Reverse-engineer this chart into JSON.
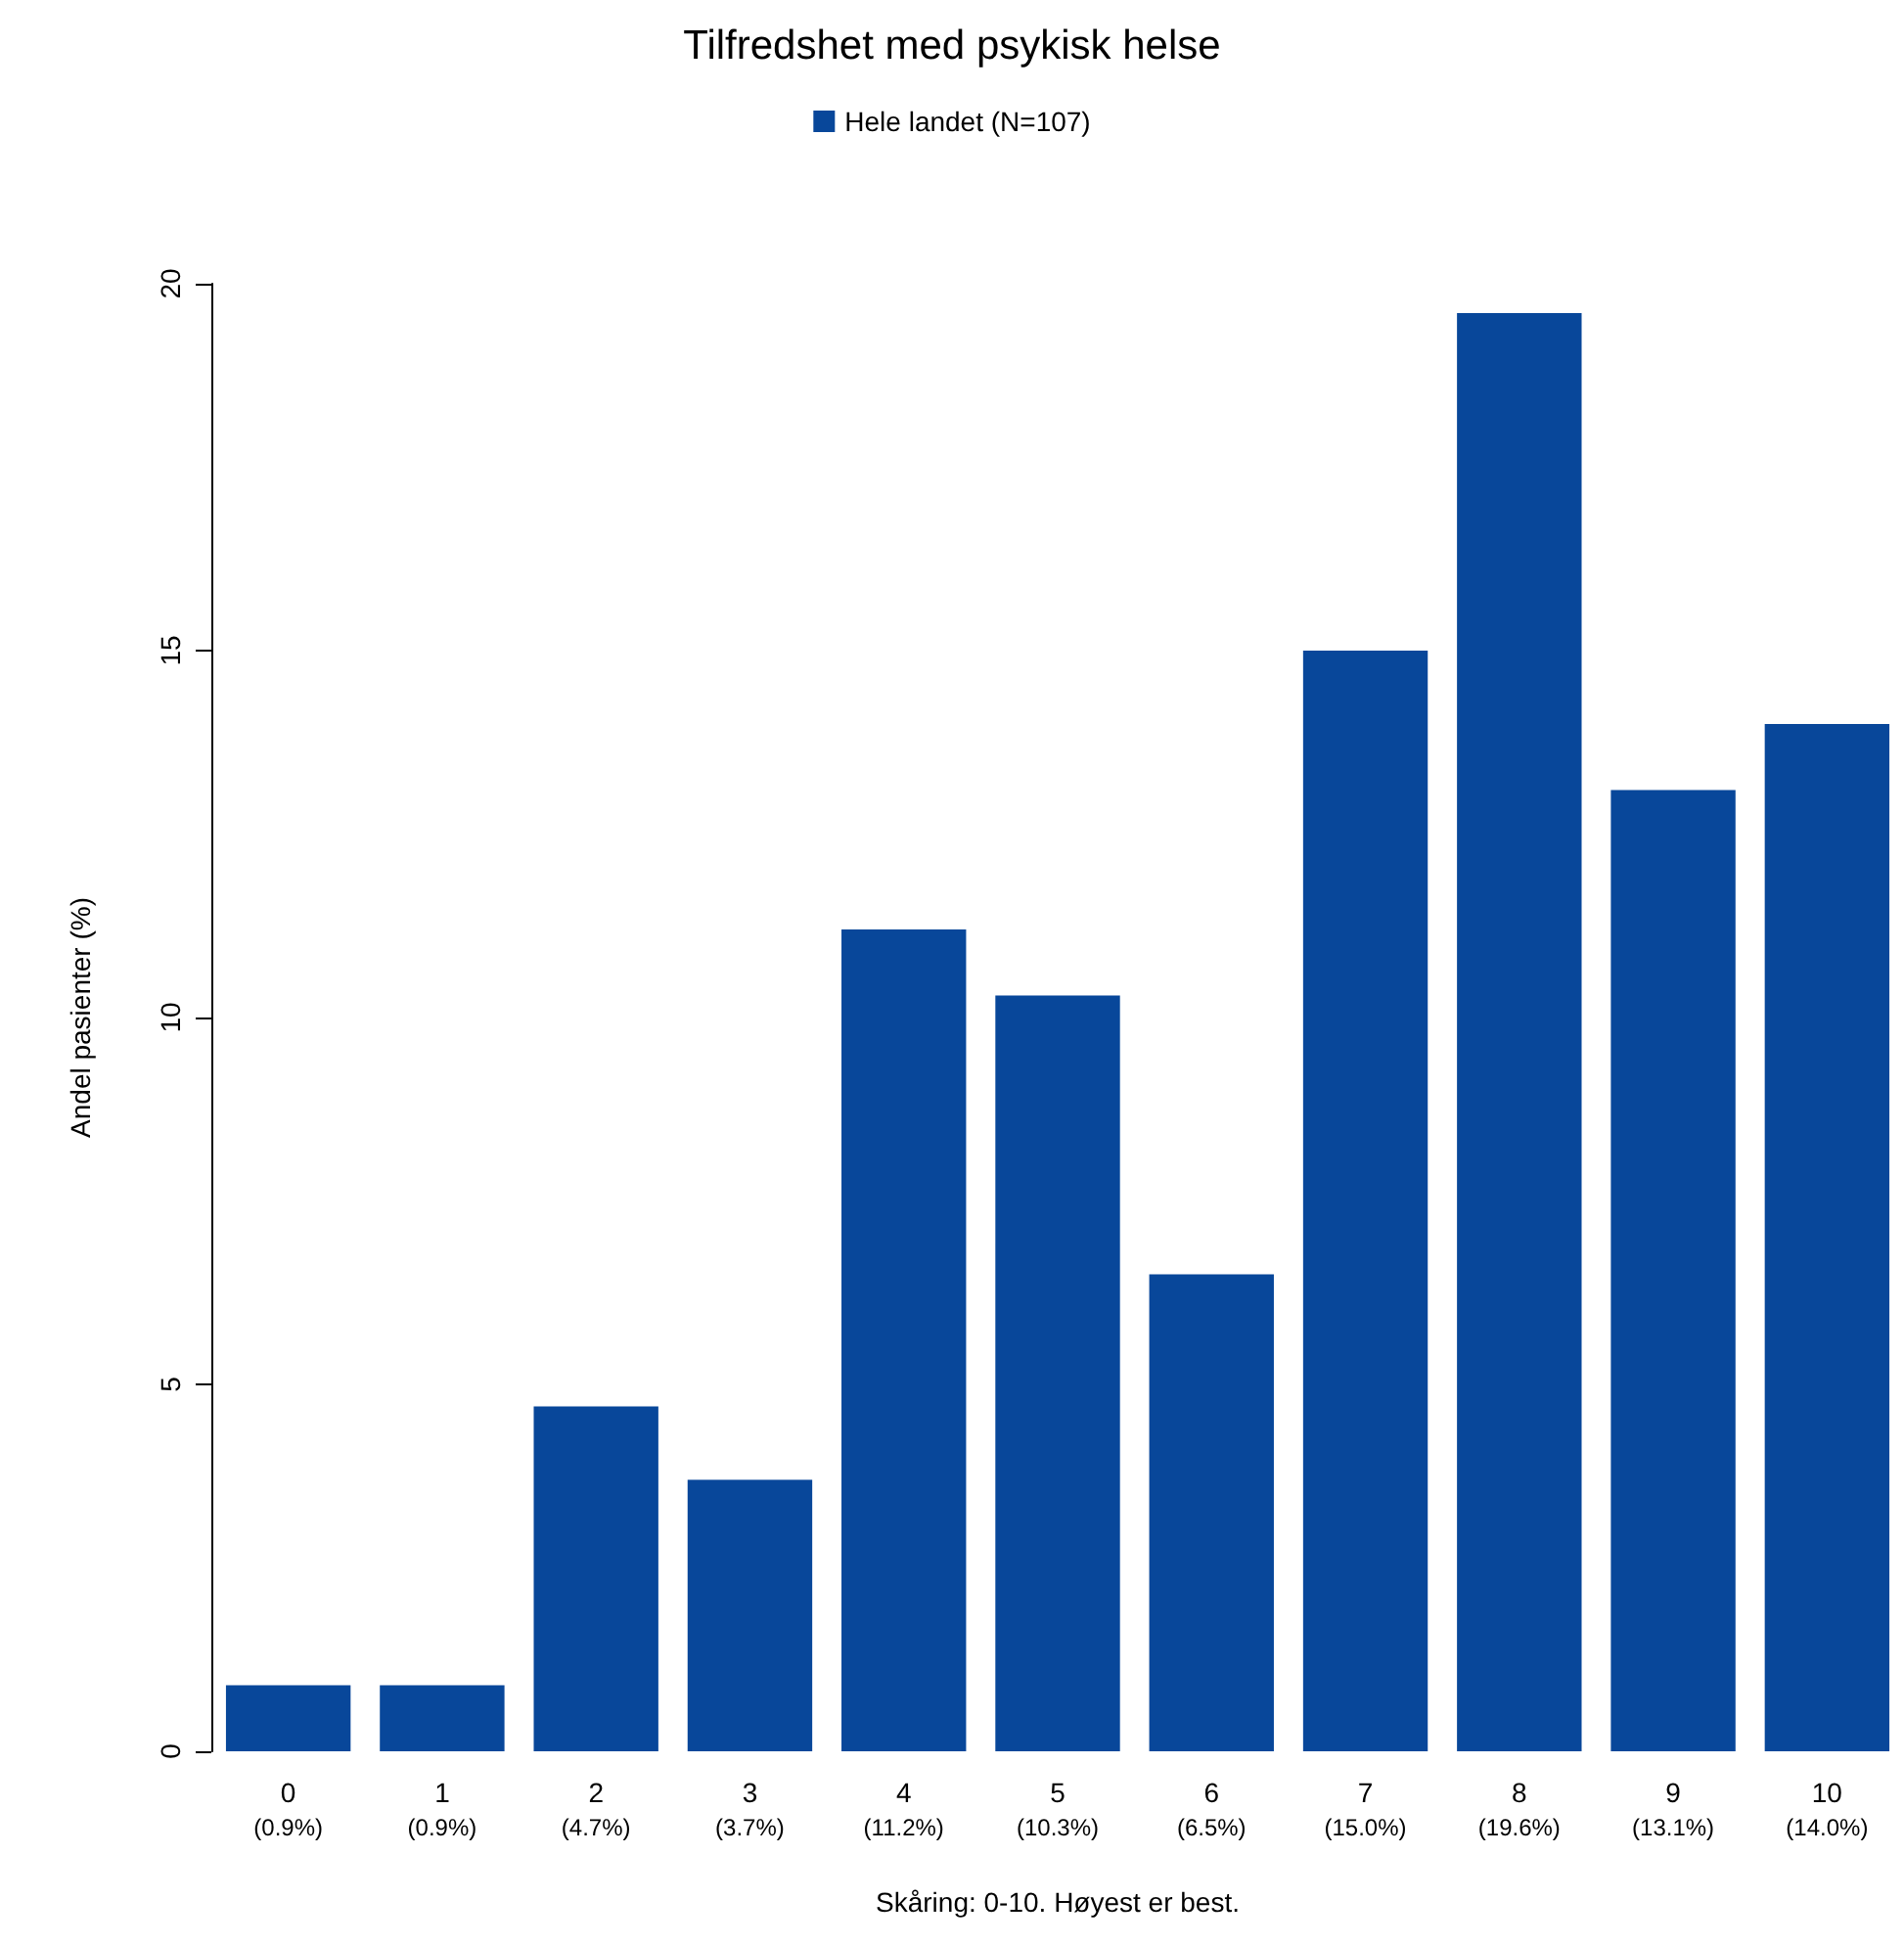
{
  "chart_data": {
    "type": "bar",
    "title": "Tilfredshet med psykisk helse",
    "xlabel": "Skåring: 0-10. Høyest er best.",
    "ylabel": "Andel pasienter (%)",
    "categories": [
      "0\n(0.9%)",
      "1\n(0.9%)",
      "2\n(4.7%)",
      "3\n(3.7%)",
      "4\n(11.2%)",
      "5\n(10.3%)",
      "6\n(6.5%)",
      "7\n(15.0%)",
      "8\n(19.6%)",
      "9\n(13.1%)",
      "10\n(14.0%)"
    ],
    "series": [
      {
        "name": "Hele landet (N=107)",
        "color": "#08479a",
        "values": [
          0.9,
          0.9,
          4.7,
          3.7,
          11.2,
          10.3,
          6.5,
          15.0,
          19.6,
          13.1,
          14.0
        ]
      }
    ],
    "ylim": [
      0,
      20
    ],
    "yticks": [
      0,
      5,
      10,
      15,
      20
    ],
    "grid": false,
    "legend": "top"
  }
}
